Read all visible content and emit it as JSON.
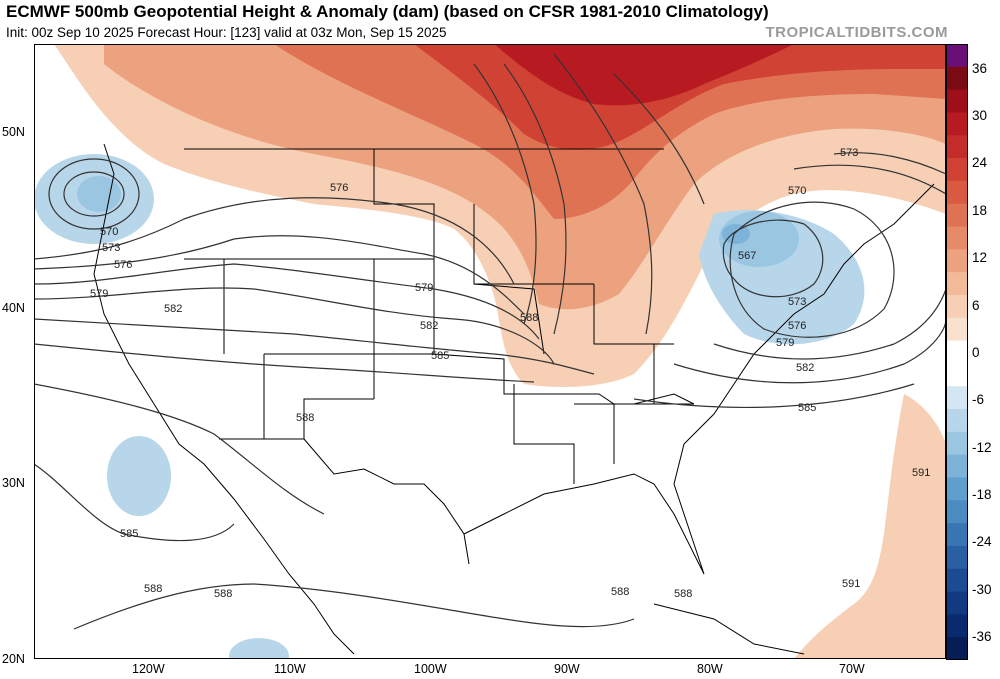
{
  "header": {
    "title": "ECMWF 500mb Geopotential Height & Anomaly (dam) (based on CFSR 1981-2010 Climatology)",
    "subtitle": "Init: 00z Sep 10 2025   Forecast Hour: [123]   valid at 03z Mon, Sep 15 2025",
    "brand": "TROPICALTIDBITS.COM"
  },
  "map": {
    "lat_labels": [
      "50N",
      "40N",
      "30N",
      "20N"
    ],
    "lon_labels": [
      "120W",
      "110W",
      "100W",
      "90W",
      "80W",
      "70W"
    ],
    "contour_labels": [
      "576",
      "570",
      "573",
      "576",
      "579",
      "582",
      "579",
      "582",
      "585",
      "588",
      "588",
      "570",
      "567",
      "573",
      "573",
      "576",
      "579",
      "582",
      "585",
      "591",
      "591",
      "585",
      "588",
      "588",
      "588",
      "588"
    ]
  },
  "colorbar": {
    "labels": [
      "36",
      "30",
      "24",
      "18",
      "12",
      "6",
      "0",
      "-6",
      "-12",
      "-18",
      "-24",
      "-30",
      "-36"
    ],
    "colors": [
      "#6a0f78",
      "#7a0a14",
      "#9e0f1a",
      "#b81a22",
      "#c42c2a",
      "#d04334",
      "#d95a40",
      "#e07254",
      "#e68a68",
      "#eca27f",
      "#f2ba99",
      "#f6cfb5",
      "#f9e1d0",
      "#ffffff",
      "#ffffff",
      "#d3e6f1",
      "#b8d6ea",
      "#9ac6e2",
      "#7db3d8",
      "#5f9fcd",
      "#4a8bc1",
      "#3975b3",
      "#2a5fa3",
      "#1c4b93",
      "#113a82",
      "#0a2a6e",
      "#081c55"
    ]
  }
}
